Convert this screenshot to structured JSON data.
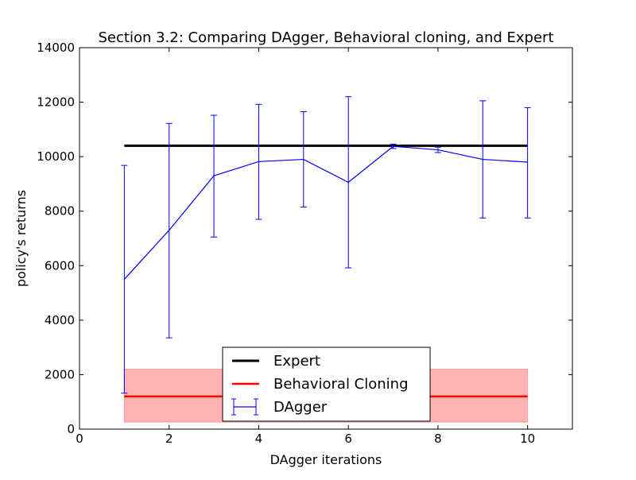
{
  "chart_data": {
    "type": "line",
    "title": "Section 3.2: Comparing DAgger, Behavioral cloning, and Expert",
    "xlabel": "DAgger iterations",
    "ylabel": "policy's returns",
    "xlim": [
      0,
      11
    ],
    "ylim": [
      0,
      14000
    ],
    "x_ticks": [
      0,
      2,
      4,
      6,
      8,
      10
    ],
    "y_ticks": [
      0,
      2000,
      4000,
      6000,
      8000,
      10000,
      12000,
      14000
    ],
    "grid": false,
    "legend_position": "bottom-center",
    "series": [
      {
        "name": "Expert",
        "kind": "hline",
        "x": [
          1,
          10
        ],
        "y": [
          10400,
          10400
        ],
        "color": "#000000"
      },
      {
        "name": "Behavioral Cloning",
        "kind": "hline_with_band",
        "x": [
          1,
          10
        ],
        "y": [
          1200,
          1200
        ],
        "band_low": 260,
        "band_high": 2200,
        "color": "#ff0000",
        "band_color": "#ffb3b3"
      },
      {
        "name": "DAgger",
        "kind": "errorbar",
        "x": [
          1,
          2,
          3,
          4,
          5,
          6,
          7,
          8,
          9,
          10
        ],
        "y": [
          5500,
          7300,
          9300,
          9820,
          9900,
          9060,
          10380,
          10250,
          9900,
          9800
        ],
        "err_low": [
          1320,
          3350,
          7050,
          7700,
          8150,
          5920,
          10300,
          10150,
          7750,
          7750
        ],
        "err_high": [
          9680,
          11220,
          11520,
          11920,
          11650,
          12200,
          10460,
          10350,
          12050,
          11800
        ],
        "color": "#0000ff"
      }
    ]
  }
}
